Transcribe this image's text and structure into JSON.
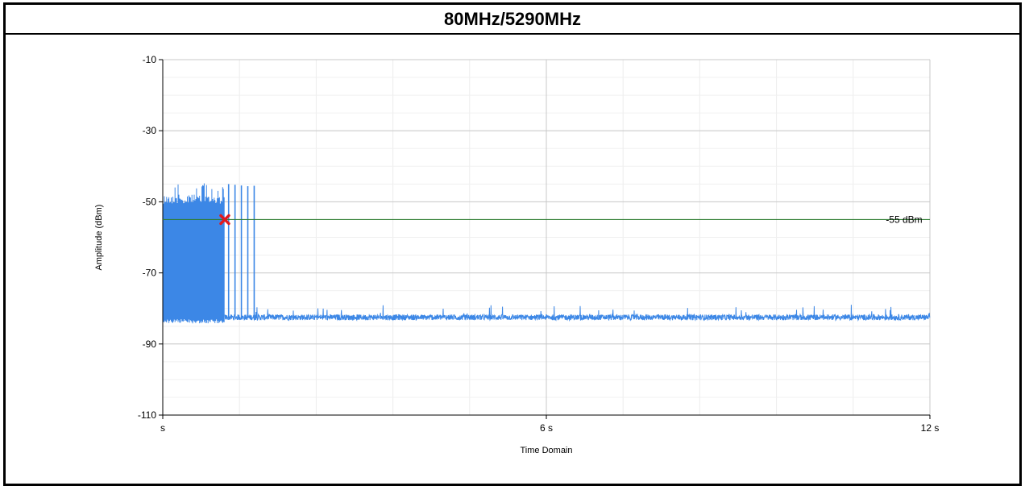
{
  "chart_data": {
    "type": "line",
    "title": "80MHz/5290MHz",
    "xlabel": "Time Domain",
    "ylabel": "Amplitude (dBm)",
    "xlim": [
      0,
      12
    ],
    "ylim": [
      -110,
      -10
    ],
    "x_tick_labels": [
      "s",
      "6 s",
      "12 s"
    ],
    "y_tick_labels": [
      "-10",
      "-30",
      "-50",
      "-70",
      "-90",
      "-110"
    ],
    "grid": true,
    "series": [
      {
        "color": "#3c87e6",
        "burst_region": {
          "x": [
            0,
            0.97
          ],
          "peak_dBm": -48,
          "floor_dBm": -83
        },
        "isolated_spikes_x": [
          1.03,
          1.13,
          1.23,
          1.33,
          1.43
        ],
        "isolated_spike_peak_dBm": -45,
        "noise_floor_dBm": -82.5
      }
    ],
    "threshold": {
      "value": -55,
      "label": "-55 dBm",
      "color": "#2e7d32"
    },
    "marker": {
      "x": 0.97,
      "y": -55,
      "symbol": "x",
      "color": "#e0191f"
    }
  }
}
